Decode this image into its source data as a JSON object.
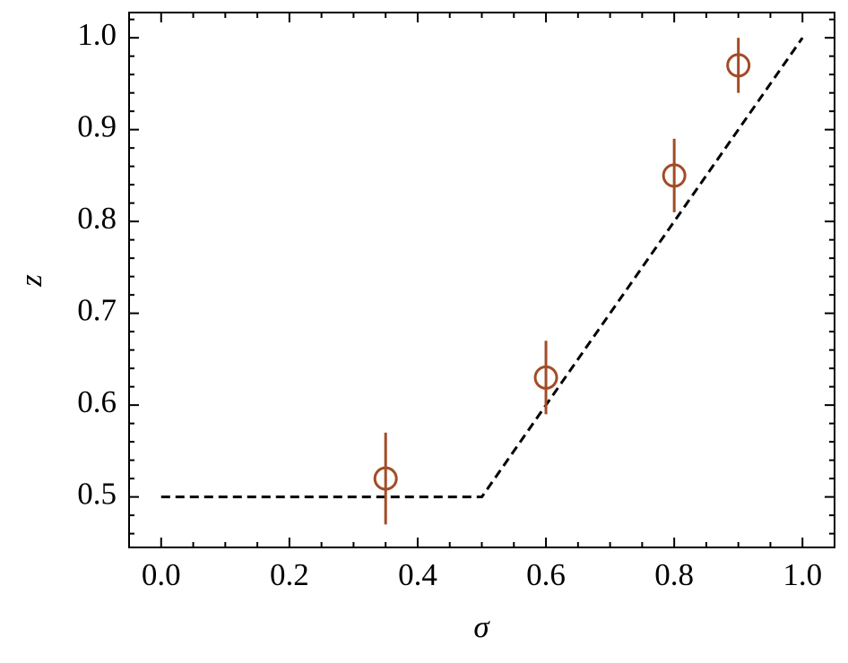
{
  "chart_data": {
    "type": "scatter",
    "xlabel": "σ",
    "ylabel": "z",
    "xlim": [
      -0.05,
      1.05
    ],
    "ylim": [
      0.445,
      1.0275
    ],
    "xticks": [
      {
        "value": 0,
        "label": "0.0"
      },
      0.2,
      0.4,
      0.6,
      0.8,
      {
        "value": 1,
        "label": "1.0"
      }
    ],
    "yticks": [
      0.5,
      0.6,
      0.7,
      0.8,
      0.9,
      {
        "value": 1,
        "label": "1.0"
      }
    ],
    "xminorticks": [
      0.05,
      0.1,
      0.15,
      0.25,
      0.3,
      0.35,
      0.45,
      0.5,
      0.55,
      0.65,
      0.7,
      0.75,
      0.85,
      0.9,
      0.95
    ],
    "yminorticks": [
      0.46,
      0.48,
      0.52,
      0.54,
      0.56,
      0.58,
      0.62,
      0.64,
      0.66,
      0.68,
      0.72,
      0.74,
      0.76,
      0.78,
      0.82,
      0.84,
      0.86,
      0.88,
      0.92,
      0.94,
      0.96,
      0.98,
      1.02
    ],
    "series": [
      {
        "type": "line",
        "color": "#000000",
        "dashed": true,
        "x": [
          0,
          0.5,
          1
        ],
        "y": [
          0.5,
          0.5,
          1
        ]
      },
      {
        "type": "errorbar",
        "color": "#a34b26",
        "x": [
          0.35,
          0.6,
          0.8,
          0.9
        ],
        "y": [
          0.52,
          0.63,
          0.85,
          0.97
        ],
        "error": [
          0.05,
          0.04,
          0.04,
          0.03
        ]
      }
    ]
  }
}
